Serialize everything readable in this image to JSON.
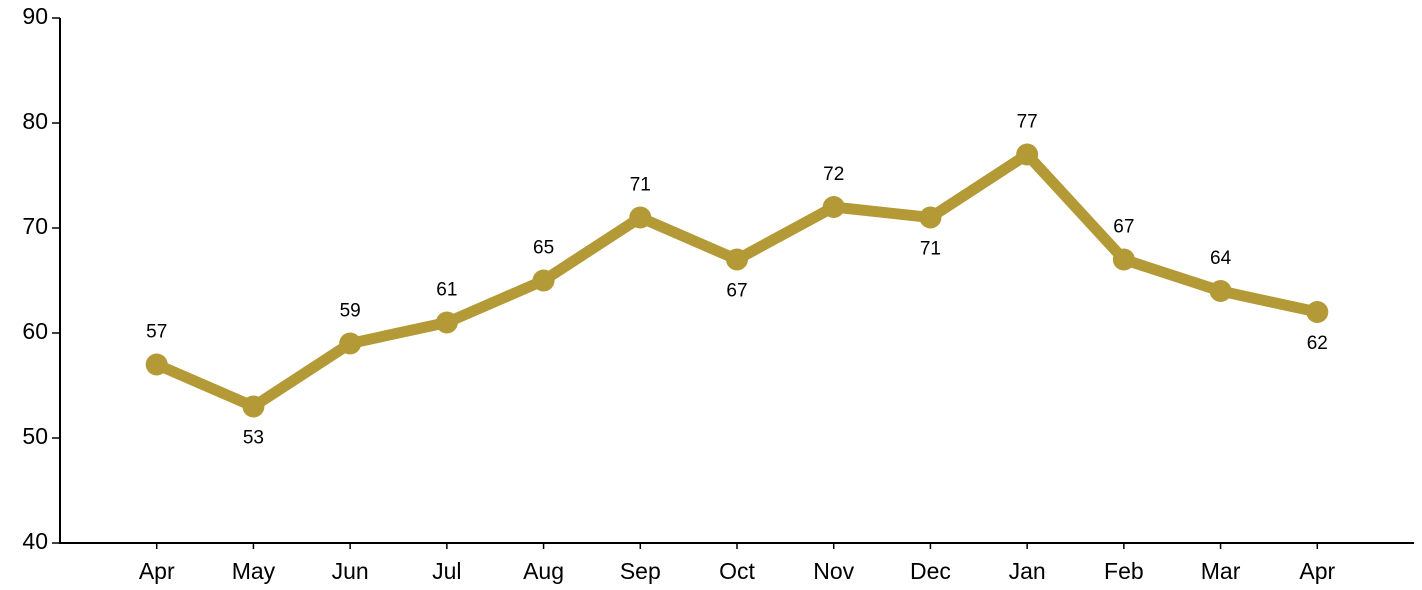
{
  "chart_data": {
    "type": "line",
    "categories": [
      "Apr",
      "May",
      "Jun",
      "Jul",
      "Aug",
      "Sep",
      "Oct",
      "Nov",
      "Dec",
      "Jan",
      "Feb",
      "Mar",
      "Apr"
    ],
    "values": [
      57,
      53,
      59,
      61,
      65,
      71,
      67,
      72,
      71,
      77,
      67,
      64,
      62
    ],
    "color": "#b39a37",
    "ylim": [
      40,
      90
    ],
    "yticks": [
      40,
      50,
      60,
      70,
      80,
      90
    ],
    "grid": false
  }
}
